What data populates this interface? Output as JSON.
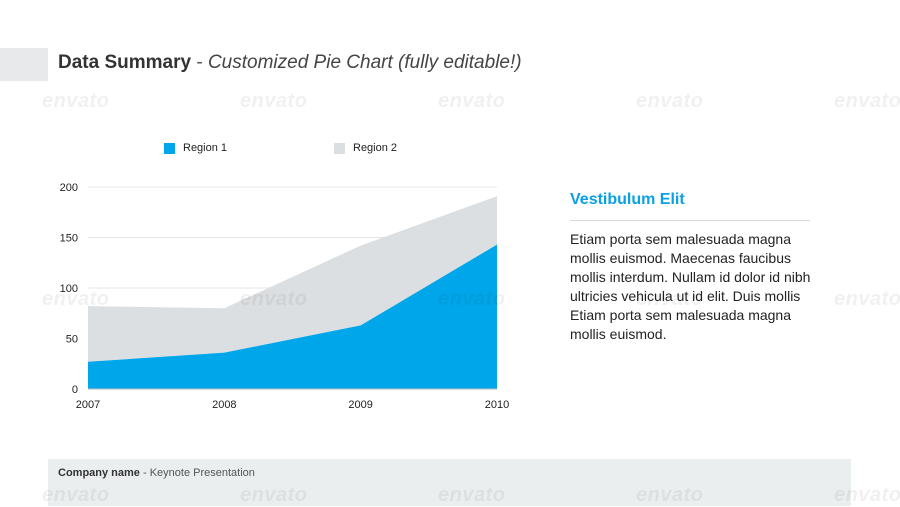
{
  "header": {
    "title_main": "Data Summary",
    "title_separator": " - ",
    "title_sub": "Customized Pie Chart (fully editable!)"
  },
  "chart_data": {
    "type": "area",
    "stacked": true,
    "x": [
      "2007",
      "2008",
      "2009",
      "2010"
    ],
    "series": [
      {
        "name": "Region 1",
        "values": [
          27,
          36,
          63,
          143
        ],
        "color": "#00a6ea"
      },
      {
        "name": "Region 2",
        "values": [
          55,
          44,
          79,
          48
        ],
        "color": "#dcdfe1"
      }
    ],
    "y_ticks": [
      "0",
      "50",
      "100",
      "150",
      "200"
    ],
    "ylim": [
      0,
      200
    ],
    "grid": true,
    "legend_position": "top"
  },
  "panel": {
    "title": "Vestibulum Elit",
    "body": "Etiam porta sem malesuada magna mollis euismod. Maecenas faucibus mollis interdum. Nullam id dolor id nibh ultricies vehicula ut id elit. Duis mollis Etiam porta sem malesuada magna mollis euismod."
  },
  "footer": {
    "company": "Company name",
    "separator": " - ",
    "rest": "Keynote Presentation"
  },
  "watermark": {
    "text": "envato"
  }
}
